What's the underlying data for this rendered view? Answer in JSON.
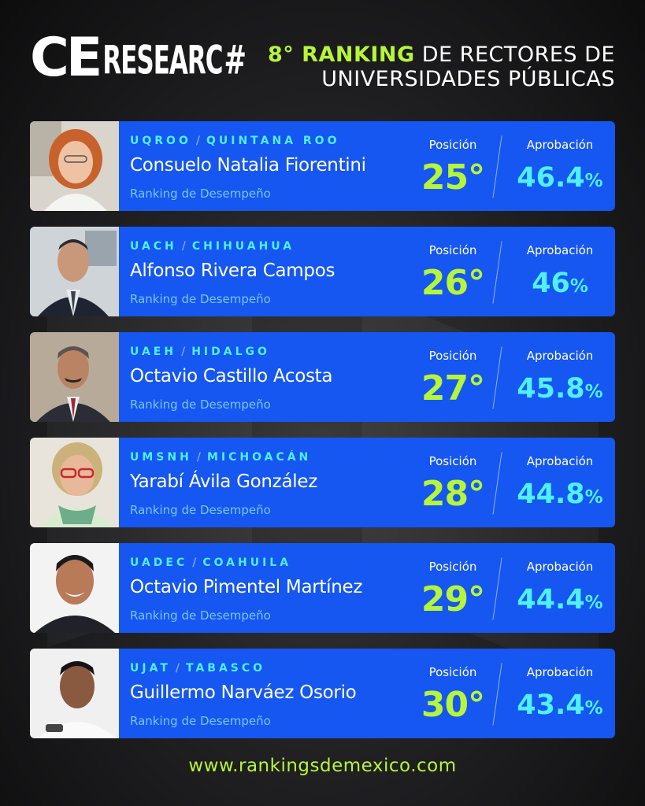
{
  "header": {
    "logo_ce": "CE",
    "logo_research": "RESEARC",
    "logo_hash": "#",
    "title_highlight": "8° RANKING",
    "title_rest1": " DE RECTORES DE",
    "title_line2": "UNIVERSIDADES PÚBLICAS"
  },
  "columns": {
    "position_label": "Posición",
    "approval_label": "Aprobación",
    "subtitle": "Ranking de Desempeño"
  },
  "colors": {
    "card_blue": "#1557f0",
    "lime": "#b6f53a",
    "cyan": "#4ff0ff"
  },
  "entries": [
    {
      "univ": "UQROO",
      "state": "QUINTANA ROO",
      "name": "Consuelo Natalia Fiorentini",
      "position": "25°",
      "approval": "46.4",
      "pct": "%",
      "photo": "woman-red-hair"
    },
    {
      "univ": "UACH",
      "state": "CHIHUAHUA",
      "name": "Alfonso Rivera Campos",
      "position": "26°",
      "approval": "46",
      "pct": "%",
      "photo": "man-suit"
    },
    {
      "univ": "UAEH",
      "state": "HIDALGO",
      "name": "Octavio Castillo Acosta",
      "position": "27°",
      "approval": "45.8",
      "pct": "%",
      "photo": "man-mustache"
    },
    {
      "univ": "UMSNH",
      "state": "MICHOACÁN",
      "name": "Yarabí Ávila González",
      "position": "28°",
      "approval": "44.8",
      "pct": "%",
      "photo": "woman-glasses"
    },
    {
      "univ": "UADEC",
      "state": "COAHUILA",
      "name": "Octavio Pimentel Martínez",
      "position": "29°",
      "approval": "44.4",
      "pct": "%",
      "photo": "man-smiling"
    },
    {
      "univ": "UJAT",
      "state": "TABASCO",
      "name": "Guillermo Narváez Osorio",
      "position": "30°",
      "approval": "43.4",
      "pct": "%",
      "photo": "man-speaking"
    }
  ],
  "footer": {
    "website": "www.rankingsdemexico.com"
  }
}
